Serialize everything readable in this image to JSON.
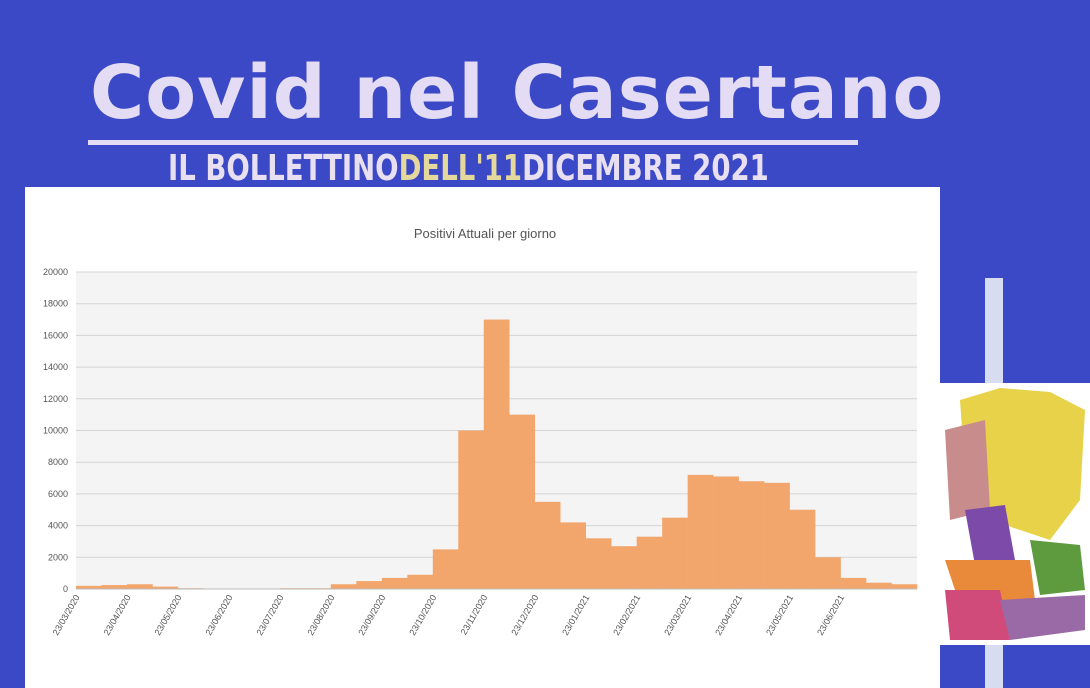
{
  "header": {
    "title": "Covid nel Casertano",
    "subtitle": [
      "IL BOLLETTINO",
      "DELL'11",
      "DICEMBRE",
      "2021"
    ]
  },
  "chart_data": {
    "type": "bar",
    "title": "Positivi Attuali per giorno",
    "categories": [
      "23/03/2020",
      null,
      "23/04/2020",
      null,
      "23/05/2020",
      null,
      "23/06/2020",
      null,
      "23/07/2020",
      null,
      "23/08/2020",
      null,
      "23/09/2020",
      null,
      "23/10/2020",
      null,
      "23/11/2020",
      null,
      "23/12/2020",
      null,
      "23/01/2021",
      null,
      "23/02/2021",
      null,
      "23/03/2021",
      null,
      "23/04/2021",
      null,
      "23/05/2021",
      null,
      "23/06/2021",
      null,
      null
    ],
    "values": [
      200,
      250,
      300,
      150,
      50,
      30,
      30,
      30,
      50,
      50,
      300,
      500,
      700,
      900,
      2500,
      10000,
      17000,
      11000,
      5500,
      4200,
      3200,
      2700,
      3300,
      4500,
      7200,
      7100,
      6800,
      6700,
      5000,
      2000,
      700,
      400,
      300
    ],
    "color": "#f3a66c",
    "ylim": [
      0,
      20000
    ],
    "yticks": [
      0,
      2000,
      4000,
      6000,
      8000,
      10000,
      12000,
      14000,
      16000,
      18000,
      20000
    ],
    "grid": true
  }
}
